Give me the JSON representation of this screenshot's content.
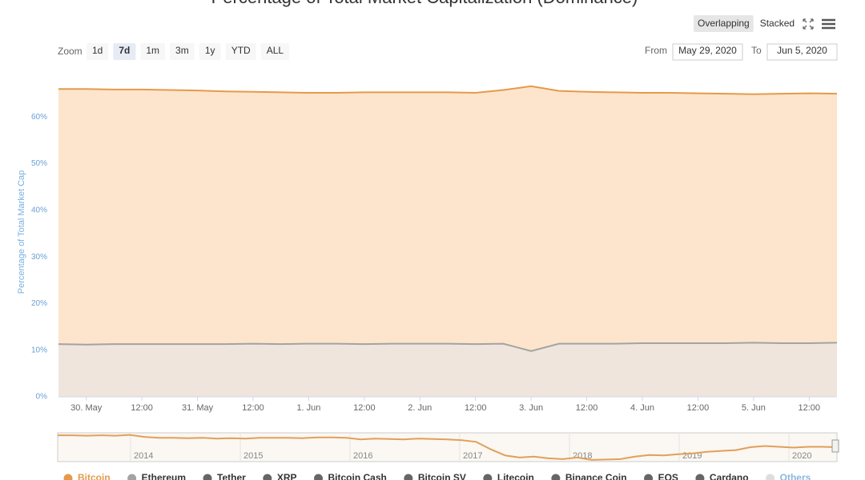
{
  "chart_data": {
    "type": "area",
    "title": "Percentage of Total Market Capitalization (Dominance)",
    "y_label": "Percentage of Total Market Cap",
    "categories": [
      null,
      "30. May",
      null,
      "12:00",
      null,
      "31. May",
      null,
      "12:00",
      null,
      "1. Jun",
      null,
      "12:00",
      null,
      "2. Jun",
      null,
      "12:00",
      null,
      "3. Jun",
      null,
      "12:00",
      null,
      "4. Jun",
      null,
      "12:00",
      null,
      "5. Jun",
      null,
      "12:00",
      null
    ],
    "ylim": [
      0,
      70
    ],
    "yticks": [
      {
        "value": 0,
        "label": "0%"
      },
      {
        "value": 10,
        "label": "10%"
      },
      {
        "value": 20,
        "label": "20%"
      },
      {
        "value": 30,
        "label": "30%"
      },
      {
        "value": 40,
        "label": "40%"
      },
      {
        "value": 50,
        "label": "50%"
      },
      {
        "value": 60,
        "label": "60%"
      }
    ],
    "grid": true,
    "series": [
      {
        "name": "Bitcoin",
        "color": "#e59a4a",
        "fill": "#fce5cc",
        "values": [
          66.0,
          66.0,
          65.9,
          65.9,
          65.8,
          65.7,
          65.5,
          65.4,
          65.3,
          65.2,
          65.2,
          65.3,
          65.3,
          65.3,
          65.3,
          65.2,
          65.8,
          66.6,
          65.6,
          65.4,
          65.3,
          65.2,
          65.2,
          65.1,
          65.0,
          64.9,
          65.0,
          65.1,
          65.0
        ]
      },
      {
        "name": "Ethereum",
        "color": "#a3a3a3",
        "fill": "#efe5dc",
        "values": [
          11.3,
          11.2,
          11.3,
          11.3,
          11.3,
          11.3,
          11.3,
          11.4,
          11.3,
          11.4,
          11.4,
          11.3,
          11.4,
          11.4,
          11.4,
          11.3,
          11.4,
          9.8,
          11.4,
          11.4,
          11.4,
          11.5,
          11.5,
          11.5,
          11.5,
          11.6,
          11.5,
          11.5,
          11.6
        ]
      },
      {
        "name": "Tether",
        "color": "#666666"
      },
      {
        "name": "XRP",
        "color": "#666666"
      },
      {
        "name": "Bitcoin Cash",
        "color": "#666666"
      },
      {
        "name": "Bitcoin SV",
        "color": "#666666"
      },
      {
        "name": "Litecoin",
        "color": "#666666"
      },
      {
        "name": "Binance Coin",
        "color": "#666666"
      },
      {
        "name": "EOS",
        "color": "#666666"
      },
      {
        "name": "Cardano",
        "color": "#666666"
      },
      {
        "name": "Others",
        "color": "#dddddd"
      }
    ],
    "navigator": {
      "years": [
        "2014",
        "2015",
        "2016",
        "2017",
        "2018",
        "2019",
        "2020"
      ],
      "ylim": [
        30,
        100
      ],
      "color": "#e0a05a",
      "values": [
        94,
        94,
        93,
        94,
        93,
        95,
        90,
        88,
        88,
        87,
        88,
        86,
        87,
        86,
        88,
        88,
        88,
        87,
        89,
        89,
        88,
        84,
        86,
        85,
        84,
        86,
        85,
        84,
        82,
        78,
        60,
        45,
        40,
        42,
        38,
        36,
        40,
        34,
        35,
        36,
        42,
        46,
        45,
        48,
        50,
        54,
        56,
        58,
        65,
        68,
        66,
        64,
        66,
        66,
        65
      ]
    },
    "ui": {
      "modes": [
        "Overlapping",
        "Stacked"
      ],
      "active_mode": 0,
      "zoom_label": "Zoom",
      "zoom": [
        "1d",
        "7d",
        "1m",
        "3m",
        "1y",
        "YTD",
        "ALL"
      ],
      "active_zoom": 1,
      "from_label": "From",
      "from": "May 29, 2020",
      "to_label": "To",
      "to": "Jun 5, 2020"
    }
  }
}
